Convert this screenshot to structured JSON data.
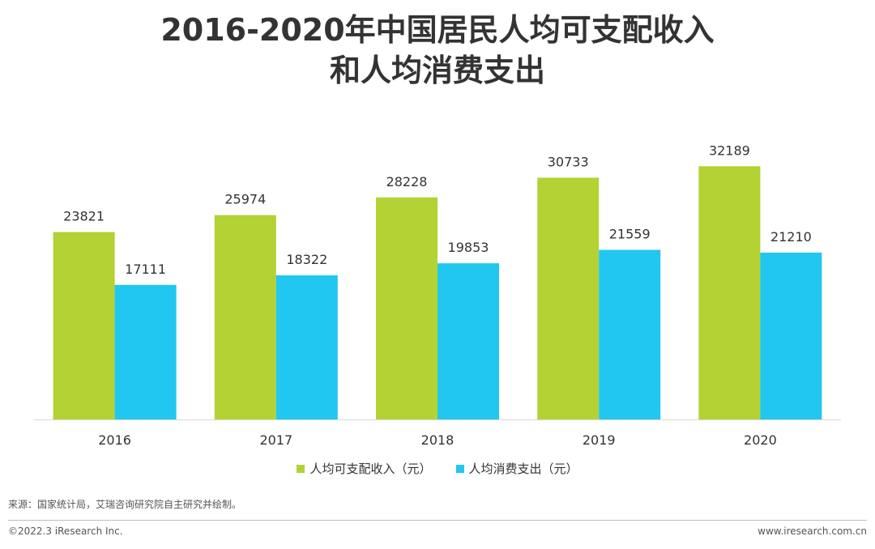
{
  "title": {
    "line1": "2016-2020年中国居民人均可支配收入",
    "line2": "和人均消费支出"
  },
  "chart_data": {
    "type": "bar",
    "categories": [
      "2016",
      "2017",
      "2018",
      "2019",
      "2020"
    ],
    "series": [
      {
        "name": "人均可支配收入（元）",
        "color": "#b3d233",
        "values": [
          23821,
          25974,
          28228,
          30733,
          32189
        ]
      },
      {
        "name": "人均消费支出（元）",
        "color": "#21c7f0",
        "values": [
          17111,
          18322,
          19853,
          21559,
          21210
        ]
      }
    ],
    "ylim": [
      0,
      35000
    ],
    "grid": false,
    "legend_position": "bottom",
    "data_labels": true
  },
  "footer": {
    "source": "来源：国家统计局，艾瑞咨询研究院自主研究并绘制。",
    "copyright": "©2022.3 iResearch Inc.",
    "website": "www.iresearch.com.cn"
  }
}
